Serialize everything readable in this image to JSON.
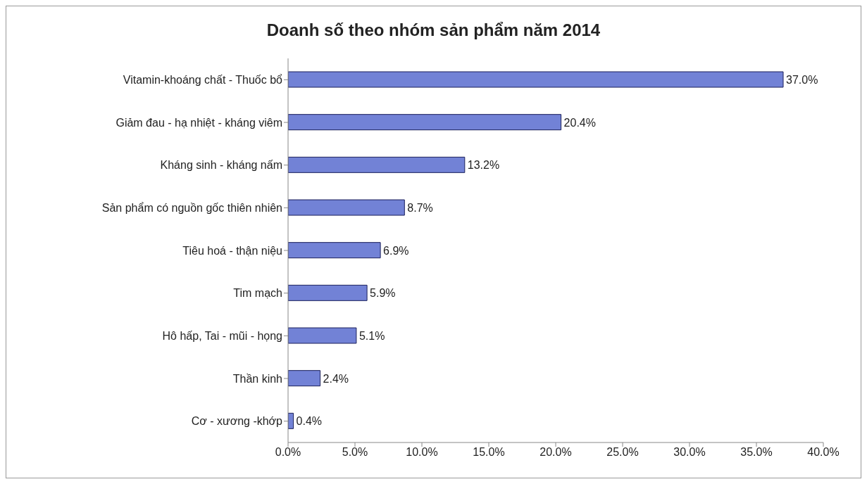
{
  "chart_data": {
    "type": "bar",
    "orientation": "horizontal",
    "title": "Doanh số theo nhóm sản phẩm năm 2014",
    "categories": [
      "Vitamin-khoáng chất - Thuốc bổ",
      "Giảm đau - hạ nhiệt - kháng viêm",
      "Kháng sinh - kháng nấm",
      "Sản phẩm có nguồn gốc thiên nhiên",
      "Tiêu hoá - thận niệu",
      "Tim mạch",
      "Hô hấp, Tai - mũi - họng",
      "Thần kinh",
      "Cơ - xương -khớp"
    ],
    "values": [
      37.0,
      20.4,
      13.2,
      8.7,
      6.9,
      5.9,
      5.1,
      2.4,
      0.4
    ],
    "value_labels": [
      "37.0%",
      "20.4%",
      "13.2%",
      "8.7%",
      "6.9%",
      "5.9%",
      "5.1%",
      "2.4%",
      "0.4%"
    ],
    "color": "#7282d6",
    "xlim": [
      0,
      40
    ],
    "xticks": [
      {
        "value": 0,
        "label": "0.0%"
      },
      {
        "value": 5,
        "label": "5.0%"
      },
      {
        "value": 10,
        "label": "10.0%"
      },
      {
        "value": 15,
        "label": "15.0%"
      },
      {
        "value": 20,
        "label": "20.0%"
      },
      {
        "value": 25,
        "label": "25.0%"
      },
      {
        "value": 30,
        "label": "30.0%"
      },
      {
        "value": 35,
        "label": "35.0%"
      },
      {
        "value": 40,
        "label": "40.0%"
      }
    ],
    "grid": false,
    "legend": false
  }
}
